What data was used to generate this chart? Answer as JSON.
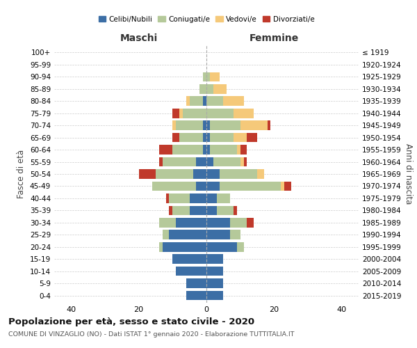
{
  "age_groups": [
    "0-4",
    "5-9",
    "10-14",
    "15-19",
    "20-24",
    "25-29",
    "30-34",
    "35-39",
    "40-44",
    "45-49",
    "50-54",
    "55-59",
    "60-64",
    "65-69",
    "70-74",
    "75-79",
    "80-84",
    "85-89",
    "90-94",
    "95-99",
    "100+"
  ],
  "birth_years": [
    "2015-2019",
    "2010-2014",
    "2005-2009",
    "2000-2004",
    "1995-1999",
    "1990-1994",
    "1985-1989",
    "1980-1984",
    "1975-1979",
    "1970-1974",
    "1965-1969",
    "1960-1964",
    "1955-1959",
    "1950-1954",
    "1945-1949",
    "1940-1944",
    "1935-1939",
    "1930-1934",
    "1925-1929",
    "1920-1924",
    "≤ 1919"
  ],
  "maschi": {
    "celibi": [
      6,
      6,
      9,
      10,
      13,
      11,
      9,
      5,
      5,
      3,
      4,
      3,
      1,
      1,
      1,
      0,
      1,
      0,
      0,
      0,
      0
    ],
    "coniugati": [
      0,
      0,
      0,
      0,
      1,
      2,
      5,
      5,
      6,
      13,
      11,
      10,
      9,
      7,
      8,
      7,
      4,
      2,
      1,
      0,
      0
    ],
    "vedovi": [
      0,
      0,
      0,
      0,
      0,
      0,
      0,
      0,
      0,
      0,
      0,
      0,
      0,
      0,
      1,
      1,
      1,
      0,
      0,
      0,
      0
    ],
    "divorziati": [
      0,
      0,
      0,
      0,
      0,
      0,
      0,
      1,
      1,
      0,
      5,
      1,
      4,
      2,
      0,
      2,
      0,
      0,
      0,
      0,
      0
    ]
  },
  "femmine": {
    "nubili": [
      5,
      5,
      5,
      5,
      9,
      7,
      7,
      3,
      3,
      4,
      4,
      2,
      1,
      1,
      1,
      0,
      0,
      0,
      0,
      0,
      0
    ],
    "coniugate": [
      0,
      0,
      0,
      0,
      2,
      3,
      5,
      5,
      4,
      18,
      11,
      8,
      8,
      7,
      9,
      8,
      5,
      2,
      1,
      0,
      0
    ],
    "vedove": [
      0,
      0,
      0,
      0,
      0,
      0,
      0,
      0,
      0,
      1,
      2,
      1,
      1,
      4,
      8,
      6,
      6,
      4,
      3,
      0,
      0
    ],
    "divorziate": [
      0,
      0,
      0,
      0,
      0,
      0,
      2,
      1,
      0,
      2,
      0,
      1,
      2,
      3,
      1,
      0,
      0,
      0,
      0,
      0,
      0
    ]
  },
  "colors": {
    "celibi": "#3c6ea5",
    "coniugati": "#b5c99a",
    "vedovi": "#f5c97a",
    "divorziati": "#c0392b"
  },
  "xlim": 45,
  "title": "Popolazione per età, sesso e stato civile - 2020",
  "subtitle": "COMUNE DI VINZAGLIO (NO) - Dati ISTAT 1° gennaio 2020 - Elaborazione TUTTITALIA.IT",
  "xlabel_left": "Maschi",
  "xlabel_right": "Femmine",
  "ylabel_left": "Fasce di età",
  "ylabel_right": "Anni di nascita",
  "legend_labels": [
    "Celibi/Nubili",
    "Coniugati/e",
    "Vedovi/e",
    "Divorziati/e"
  ],
  "bg_color": "#ffffff",
  "grid_color": "#cccccc"
}
